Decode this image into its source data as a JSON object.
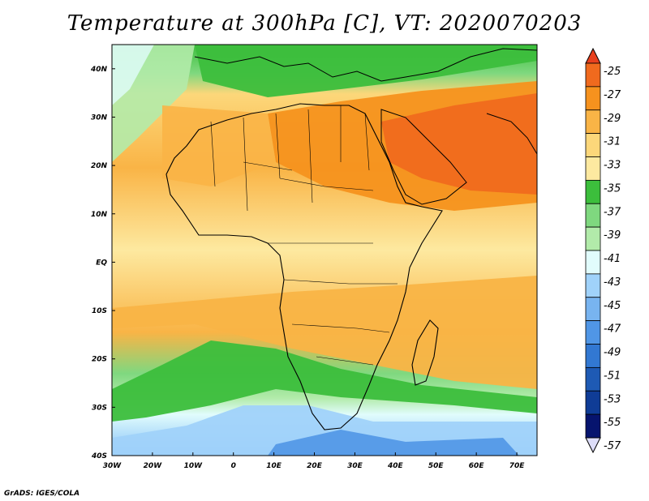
{
  "title": "Temperature at 300hPa [C], VT: 2020070203",
  "footer": "GrADS: IGES/COLA",
  "map": {
    "lon_labels": [
      "30W",
      "20W",
      "10W",
      "0",
      "10E",
      "20E",
      "30E",
      "40E",
      "50E",
      "60E",
      "70E"
    ],
    "lat_labels": [
      "40N",
      "30N",
      "20N",
      "10N",
      "EQ",
      "10S",
      "20S",
      "30S",
      "40S"
    ],
    "lon_range": [
      -30,
      75
    ],
    "lat_range": [
      -40,
      45
    ]
  },
  "colorbar": {
    "labels": [
      "-25",
      "-27",
      "-29",
      "-31",
      "-33",
      "-35",
      "-37",
      "-39",
      "-41",
      "-43",
      "-45",
      "-47",
      "-49",
      "-51",
      "-53",
      "-55",
      "-57"
    ],
    "colors": [
      "#e8401e",
      "#f06a1e",
      "#f6921e",
      "#f9b446",
      "#fcd77a",
      "#fde9a0",
      "#3cbe3c",
      "#7fd87f",
      "#b2ebaa",
      "#e1fcfc",
      "#a0d2fa",
      "#78b4f0",
      "#5096e6",
      "#3278d2",
      "#1e5ab4",
      "#0f3c96",
      "#06146e",
      "#ddddf8"
    ]
  }
}
